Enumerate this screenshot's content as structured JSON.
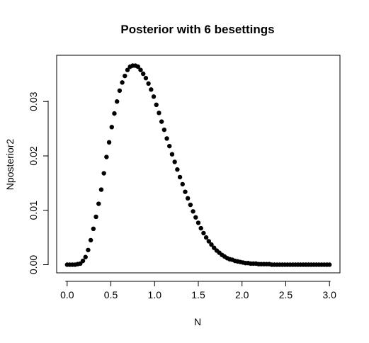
{
  "chart_data": {
    "type": "scatter",
    "title": "Posterior with 6 besettings",
    "xlabel": "N",
    "ylabel": "Nposterior2",
    "xlim": [
      -0.12,
      3.12
    ],
    "ylim": [
      -0.0015,
      0.0385
    ],
    "x_ticks": [
      "0.0",
      "0.5",
      "1.0",
      "1.5",
      "2.0",
      "2.5",
      "3.0"
    ],
    "y_ticks": [
      "0.00",
      "0.01",
      "0.02",
      "0.03"
    ],
    "grid": false,
    "legend": "none",
    "point_color": "#000000",
    "x": [
      0.0,
      0.03,
      0.06,
      0.09,
      0.12,
      0.15,
      0.18,
      0.21,
      0.24,
      0.27,
      0.3,
      0.33,
      0.36,
      0.39,
      0.42,
      0.45,
      0.48,
      0.51,
      0.54,
      0.57,
      0.6,
      0.63,
      0.66,
      0.69,
      0.72,
      0.75,
      0.78,
      0.81,
      0.84,
      0.87,
      0.9,
      0.93,
      0.96,
      0.99,
      1.02,
      1.05,
      1.08,
      1.11,
      1.14,
      1.17,
      1.2,
      1.23,
      1.26,
      1.29,
      1.32,
      1.35,
      1.38,
      1.41,
      1.44,
      1.47,
      1.5,
      1.53,
      1.56,
      1.59,
      1.62,
      1.65,
      1.68,
      1.71,
      1.74,
      1.77,
      1.8,
      1.83,
      1.86,
      1.89,
      1.92,
      1.95,
      1.98,
      2.01,
      2.04,
      2.07,
      2.1,
      2.13,
      2.16,
      2.19,
      2.22,
      2.25,
      2.28,
      2.31,
      2.34,
      2.37,
      2.4,
      2.43,
      2.46,
      2.49,
      2.52,
      2.55,
      2.58,
      2.61,
      2.64,
      2.67,
      2.7,
      2.73,
      2.76,
      2.79,
      2.82,
      2.85,
      2.88,
      2.91,
      2.94,
      2.97,
      3.0
    ],
    "y": [
      0.0,
      0.0,
      0.0,
      0.0,
      0.0001,
      0.0002,
      0.0007,
      0.0014,
      0.0027,
      0.0045,
      0.0066,
      0.0088,
      0.0112,
      0.0138,
      0.0168,
      0.0198,
      0.0225,
      0.0253,
      0.0278,
      0.03,
      0.032,
      0.0335,
      0.0347,
      0.0358,
      0.0364,
      0.0366,
      0.0366,
      0.0364,
      0.0358,
      0.0351,
      0.0343,
      0.0333,
      0.0322,
      0.0309,
      0.0294,
      0.0279,
      0.0263,
      0.0248,
      0.0232,
      0.0218,
      0.0203,
      0.0189,
      0.0175,
      0.0161,
      0.0148,
      0.0134,
      0.0122,
      0.011,
      0.0098,
      0.0087,
      0.0077,
      0.0067,
      0.0058,
      0.005,
      0.0043,
      0.0037,
      0.0031,
      0.0026,
      0.0022,
      0.0018,
      0.0015,
      0.0012,
      0.001,
      0.0009,
      0.0007,
      0.0006,
      0.0005,
      0.0004,
      0.0003,
      0.0003,
      0.0002,
      0.0002,
      0.0002,
      0.0001,
      0.0001,
      0.0001,
      0.0001,
      0.0001,
      0.0,
      0.0,
      0.0,
      0.0,
      0.0,
      0.0,
      0.0,
      0.0,
      0.0,
      0.0,
      0.0,
      0.0,
      0.0,
      0.0,
      0.0,
      0.0,
      0.0,
      0.0,
      0.0,
      0.0,
      0.0,
      0.0,
      0.0
    ]
  }
}
